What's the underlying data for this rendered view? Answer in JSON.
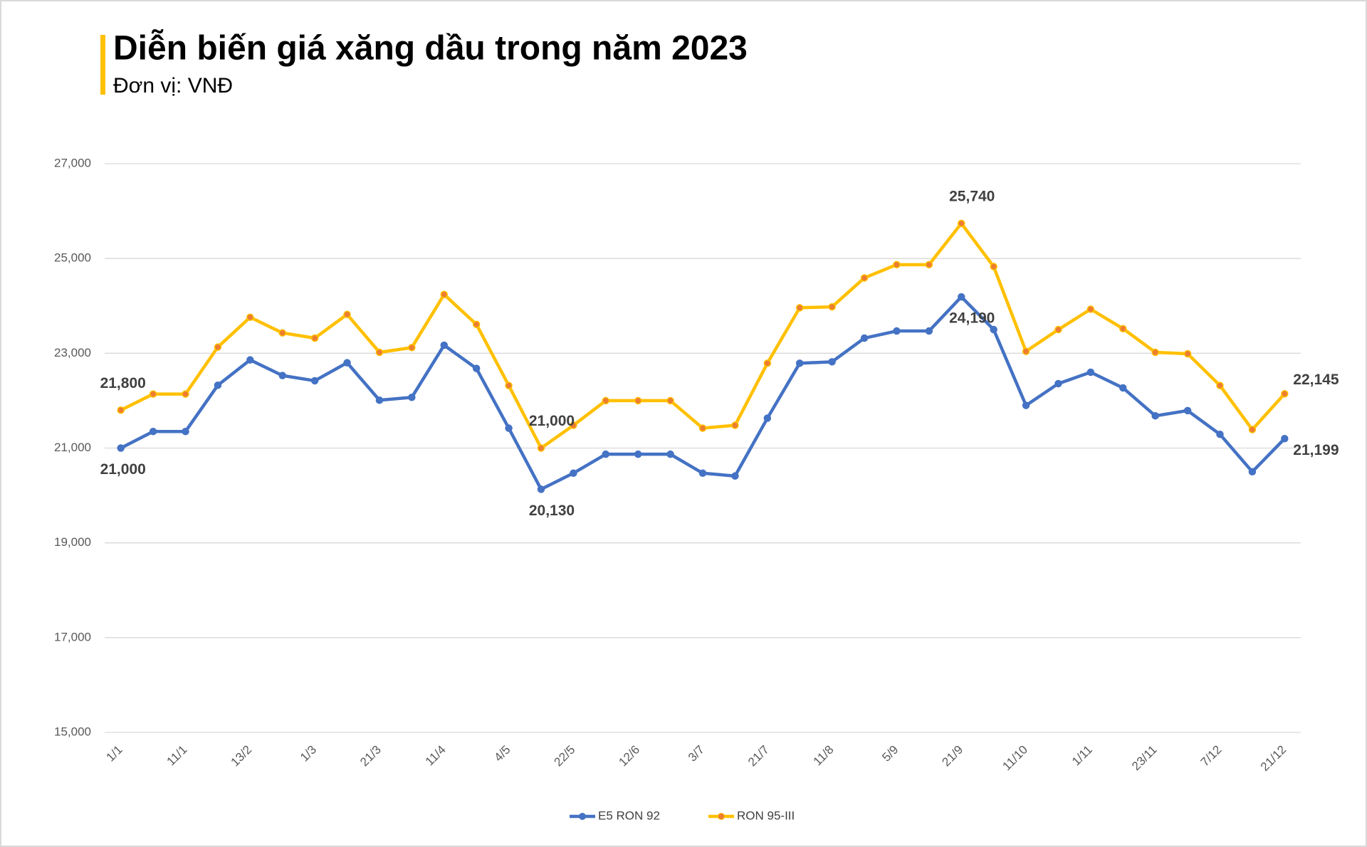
{
  "chart_data": {
    "type": "line",
    "title": "Diễn biến giá xăng dầu trong năm 2023",
    "subtitle": "Đơn vị: VNĐ",
    "categories": [
      "1/1",
      null,
      "11/1",
      null,
      "13/2",
      null,
      "1/3",
      null,
      "21/3",
      null,
      "11/4",
      null,
      "4/5",
      null,
      "22/5",
      null,
      "12/6",
      null,
      "3/7",
      null,
      "21/7",
      null,
      "11/8",
      null,
      "5/9",
      null,
      "21/9",
      null,
      "11/10",
      null,
      "1/11",
      null,
      "23/11",
      null,
      "7/12",
      null,
      "21/12"
    ],
    "series": [
      {
        "name": "E5 RON 92",
        "color": "#4472c4",
        "values": [
          21000,
          21350,
          21350,
          22325,
          22860,
          22530,
          22420,
          22800,
          22010,
          22070,
          23170,
          22680,
          21420,
          20130,
          20470,
          20870,
          20870,
          20870,
          20470,
          20410,
          21630,
          22790,
          22820,
          23320,
          23470,
          23470,
          24190,
          23500,
          21900,
          22360,
          22600,
          22270,
          21680,
          21790,
          21290,
          20500,
          21199
        ],
        "value_labels": [
          "21,000",
          null,
          null,
          null,
          null,
          null,
          null,
          null,
          null,
          null,
          null,
          null,
          null,
          "20,130",
          null,
          null,
          null,
          null,
          null,
          null,
          null,
          null,
          null,
          null,
          null,
          null,
          "24,190",
          null,
          null,
          null,
          null,
          null,
          null,
          null,
          null,
          null,
          "21,199"
        ]
      },
      {
        "name": "RON 95-III",
        "color": "#ffc000",
        "values": [
          21800,
          22140,
          22140,
          23130,
          23760,
          23430,
          23320,
          23820,
          23020,
          23120,
          24240,
          23610,
          22320,
          21000,
          21480,
          22000,
          22000,
          22000,
          21420,
          21480,
          22790,
          23960,
          23980,
          24590,
          24870,
          24870,
          25740,
          24830,
          23040,
          23500,
          23930,
          23520,
          23020,
          22990,
          22320,
          21390,
          22145
        ],
        "value_labels": [
          "21,800",
          null,
          null,
          null,
          null,
          null,
          null,
          null,
          null,
          null,
          null,
          null,
          null,
          "21,000",
          null,
          null,
          null,
          null,
          null,
          null,
          null,
          null,
          null,
          null,
          null,
          null,
          "25,740",
          null,
          null,
          null,
          null,
          null,
          null,
          null,
          null,
          null,
          "22,145"
        ]
      }
    ],
    "ylim": [
      15000,
      27000
    ],
    "yticks": [
      {
        "value": 15000,
        "label": "15,000"
      },
      {
        "value": 17000,
        "label": "17,000"
      },
      {
        "value": 19000,
        "label": "19,000"
      },
      {
        "value": 21000,
        "label": "21,000"
      },
      {
        "value": 23000,
        "label": "23,000"
      },
      {
        "value": 25000,
        "label": "25,000"
      },
      {
        "value": 27000,
        "label": "27,000"
      }
    ],
    "grid": true,
    "legend": "bottom"
  }
}
